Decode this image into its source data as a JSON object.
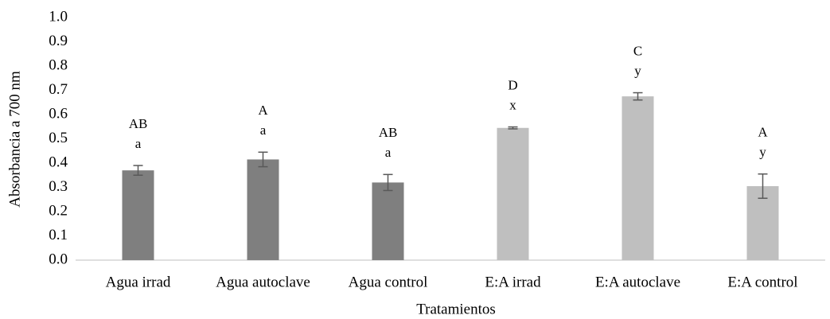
{
  "chart_data": {
    "type": "bar",
    "x_label": "Tratamientos",
    "y_label": "Absorbancia a 700 nm",
    "categories": [
      "Agua irrad",
      "Agua autoclave",
      "Agua control",
      "E:A irrad",
      "E:A autoclave",
      "E:A control"
    ],
    "values": [
      0.37,
      0.415,
      0.32,
      0.545,
      0.675,
      0.305
    ],
    "errors": [
      0.02,
      0.03,
      0.033,
      0.004,
      0.015,
      0.05
    ],
    "colors": [
      "#7f7f7f",
      "#7f7f7f",
      "#7f7f7f",
      "#bfbfbf",
      "#bfbfbf",
      "#bfbfbf"
    ],
    "letters_upper": [
      "AB",
      "A",
      "AB",
      "D",
      "C",
      "A"
    ],
    "letters_lower": [
      "a",
      "a",
      "a",
      "x",
      "y",
      "y"
    ],
    "ylim": [
      0,
      1
    ],
    "yticks": [
      {
        "value": 0,
        "label": "0.0"
      },
      0.1,
      0.2,
      0.3,
      0.4,
      0.5,
      0.6,
      0.7,
      0.8,
      0.9,
      {
        "value": 1,
        "label": "1.0"
      }
    ],
    "grid": false
  }
}
